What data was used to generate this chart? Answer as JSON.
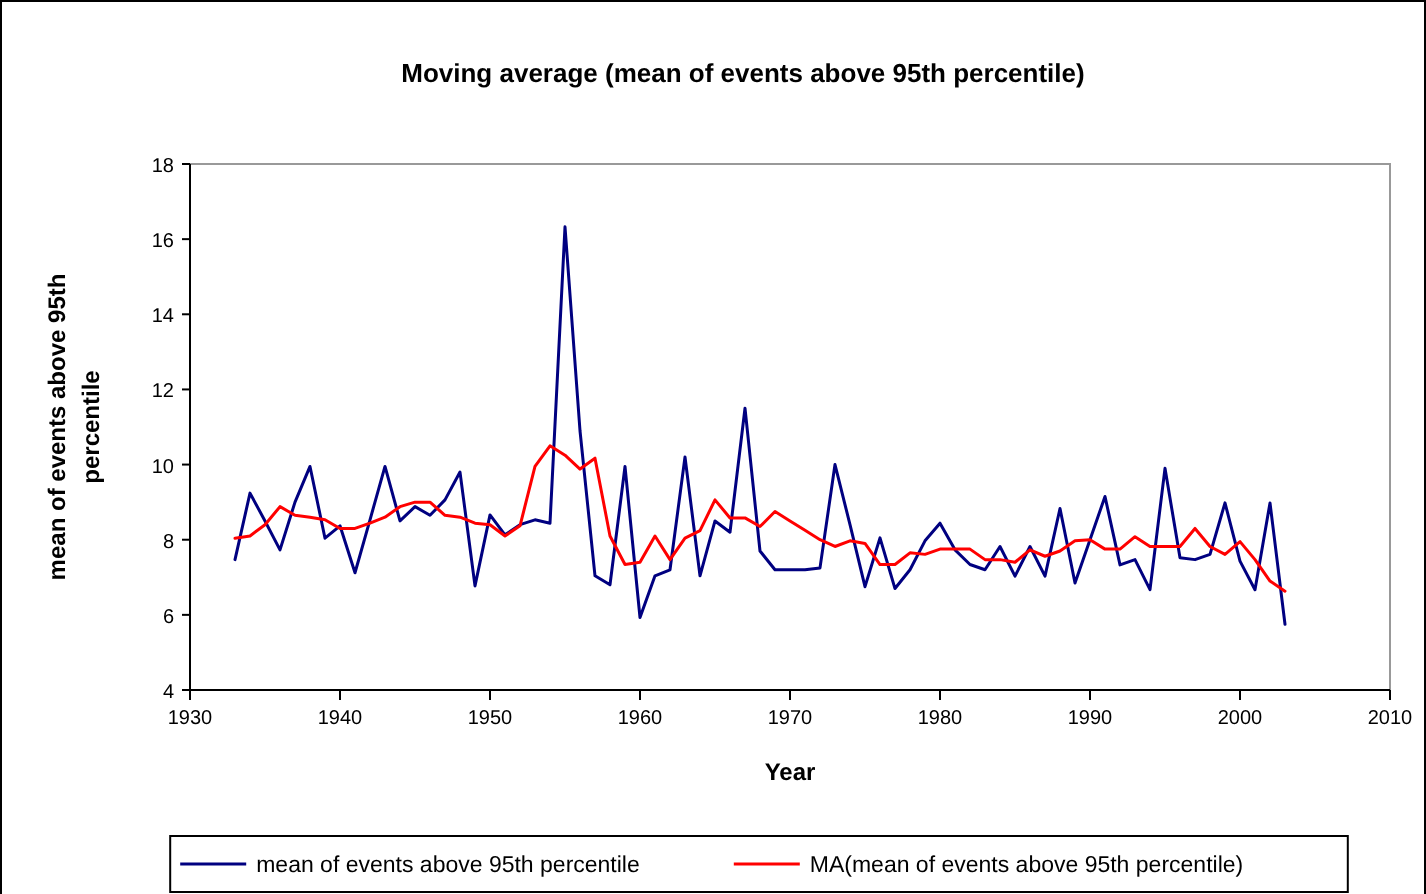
{
  "chart_data": {
    "type": "line",
    "title": "Moving average (mean of events above 95th percentile)",
    "xlabel": "Year",
    "ylabel": "mean of events above 95th percentile",
    "x": [
      1933,
      1934,
      1935,
      1936,
      1937,
      1938,
      1939,
      1940,
      1941,
      1942,
      1943,
      1944,
      1945,
      1946,
      1947,
      1948,
      1949,
      1950,
      1951,
      1952,
      1953,
      1954,
      1955,
      1956,
      1957,
      1958,
      1959,
      1960,
      1961,
      1962,
      1963,
      1964,
      1965,
      1966,
      1967,
      1968,
      1969,
      1970,
      1971,
      1972,
      1973,
      1974,
      1975,
      1976,
      1977,
      1978,
      1979,
      1980,
      1981,
      1982,
      1983,
      1984,
      1985,
      1986,
      1987,
      1988,
      1989,
      1990,
      1991,
      1992,
      1993,
      1994,
      1995,
      1996,
      1997,
      1998,
      1999,
      2000,
      2001,
      2002,
      2003
    ],
    "series": [
      {
        "name": "mean of events above 95th percentile",
        "color": "#000080",
        "values": [
          7.47,
          9.24,
          8.5,
          7.73,
          9.0,
          9.95,
          8.04,
          8.37,
          7.12,
          8.53,
          9.95,
          8.5,
          8.88,
          8.65,
          9.06,
          9.8,
          6.77,
          8.66,
          8.13,
          8.4,
          8.53,
          8.44,
          16.33,
          10.9,
          7.04,
          6.8,
          9.95,
          5.93,
          7.04,
          7.2,
          10.2,
          7.04,
          8.5,
          8.2,
          11.5,
          7.7,
          7.2,
          7.2,
          7.2,
          7.25,
          10.0,
          8.4,
          6.75,
          8.05,
          6.7,
          7.2,
          7.97,
          8.44,
          7.73,
          7.34,
          7.2,
          7.82,
          7.03,
          7.82,
          7.03,
          8.83,
          6.85,
          8.0,
          9.15,
          7.33,
          7.47,
          6.67,
          9.9,
          7.52,
          7.47,
          7.61,
          8.98,
          7.43,
          6.67,
          8.98,
          5.75
        ]
      },
      {
        "name": "MA(mean of events above 95th percentile)",
        "color": "#ff0000",
        "values": [
          8.04,
          8.1,
          8.4,
          8.88,
          8.65,
          8.6,
          8.53,
          8.3,
          8.3,
          8.44,
          8.6,
          8.88,
          9.0,
          9.0,
          8.65,
          8.6,
          8.44,
          8.4,
          8.1,
          8.37,
          9.95,
          10.5,
          10.25,
          9.88,
          10.17,
          8.1,
          7.34,
          7.4,
          8.1,
          7.47,
          8.04,
          8.24,
          9.06,
          8.58,
          8.58,
          8.35,
          8.75,
          8.5,
          8.25,
          8.0,
          7.82,
          7.97,
          7.9,
          7.34,
          7.34,
          7.65,
          7.61,
          7.75,
          7.75,
          7.75,
          7.47,
          7.47,
          7.4,
          7.73,
          7.56,
          7.7,
          7.97,
          8.0,
          7.75,
          7.75,
          8.08,
          7.82,
          7.82,
          7.82,
          8.3,
          7.82,
          7.61,
          7.95,
          7.47,
          6.9,
          6.63
        ]
      }
    ],
    "xlim": [
      1930,
      2010
    ],
    "xticks": [
      1930,
      1940,
      1950,
      1960,
      1970,
      1980,
      1990,
      2000,
      2010
    ],
    "ylim": [
      4,
      18
    ],
    "yticks": [
      4,
      6,
      8,
      10,
      12,
      14,
      16,
      18
    ],
    "grid": false,
    "legend": "bottom",
    "marker": "none",
    "line_style": "solid"
  }
}
